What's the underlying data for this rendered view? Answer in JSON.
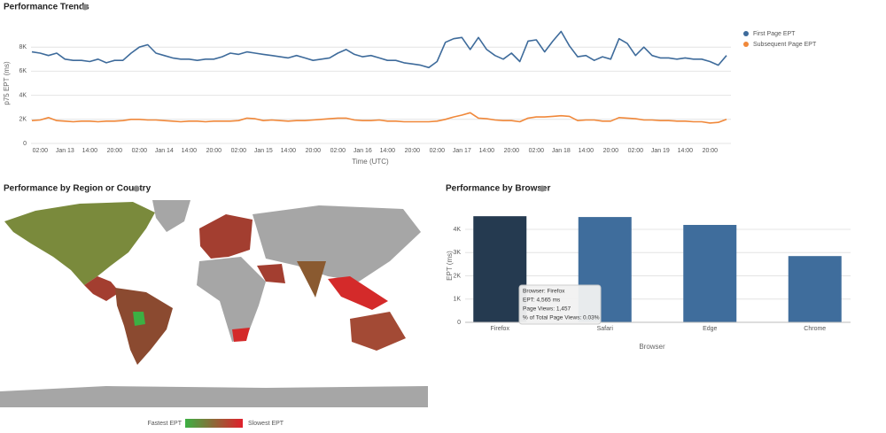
{
  "chart_data": [
    {
      "type": "line",
      "title": "Performance Trends",
      "ylabel": "p75 EPT (ms)",
      "xlabel": "Time (UTC)",
      "categories": [
        null,
        "02:00",
        null,
        null,
        "Jan 13",
        null,
        null,
        "14:00",
        null,
        null,
        "20:00",
        null,
        null,
        "02:00",
        null,
        null,
        "Jan 14",
        null,
        null,
        "14:00",
        null,
        null,
        "20:00",
        null,
        null,
        "02:00",
        null,
        null,
        "Jan 15",
        null,
        null,
        "14:00",
        null,
        null,
        "20:00",
        null,
        null,
        "02:00",
        null,
        null,
        "Jan 16",
        null,
        null,
        "14:00",
        null,
        null,
        "20:00",
        null,
        null,
        "02:00",
        null,
        null,
        "Jan 17",
        null,
        null,
        "14:00",
        null,
        null,
        "20:00",
        null,
        null,
        "02:00",
        null,
        null,
        "Jan 18",
        null,
        null,
        "14:00",
        null,
        null,
        "20:00",
        null,
        null,
        "02:00",
        null,
        null,
        "Jan 19",
        null,
        null,
        "14:00",
        null,
        null,
        "20:00",
        null,
        null
      ],
      "series": [
        {
          "name": "First Page EPT",
          "color": "#3e6b9b",
          "values": [
            7600,
            7500,
            7300,
            7500,
            7000,
            6900,
            6900,
            6800,
            7000,
            6700,
            6900,
            6900,
            7500,
            8000,
            8200,
            7500,
            7300,
            7100,
            7000,
            7000,
            6900,
            7000,
            7000,
            7200,
            7500,
            7400,
            7600,
            7500,
            7400,
            7300,
            7200,
            7100,
            7300,
            7100,
            6900,
            7000,
            7100,
            7500,
            7800,
            7400,
            7200,
            7300,
            7100,
            6900,
            6900,
            6700,
            6600,
            6500,
            6300,
            6800,
            8400,
            8700,
            8800,
            7800,
            8800,
            7800,
            7300,
            7000,
            7500,
            6800,
            8500,
            8600,
            7600,
            8500,
            9300,
            8100,
            7200,
            7300,
            6900,
            7200,
            7000,
            8700,
            8300,
            7300,
            8000,
            7300,
            7100,
            7100,
            7000,
            7100,
            7000,
            7000,
            6800,
            6500,
            7300
          ]
        },
        {
          "name": "Subsequent Page EPT",
          "color": "#f0883a",
          "values": [
            1900,
            1950,
            2150,
            1900,
            1850,
            1800,
            1850,
            1850,
            1800,
            1850,
            1850,
            1900,
            2000,
            2000,
            1950,
            1950,
            1900,
            1850,
            1800,
            1850,
            1850,
            1800,
            1850,
            1850,
            1850,
            1900,
            2100,
            2050,
            1900,
            1950,
            1900,
            1850,
            1900,
            1900,
            1950,
            2000,
            2050,
            2100,
            2100,
            1950,
            1900,
            1900,
            1950,
            1850,
            1850,
            1800,
            1800,
            1800,
            1800,
            1850,
            2000,
            2200,
            2350,
            2550,
            2100,
            2050,
            1950,
            1900,
            1900,
            1800,
            2100,
            2200,
            2200,
            2250,
            2300,
            2250,
            1900,
            1950,
            1950,
            1850,
            1850,
            2150,
            2100,
            2050,
            1950,
            1950,
            1900,
            1900,
            1850,
            1850,
            1800,
            1800,
            1700,
            1750,
            2000
          ]
        }
      ],
      "ylim": [
        0,
        10000
      ],
      "yticks": [
        0,
        {
          "value": 2000,
          "label": "2K"
        },
        {
          "value": 4000,
          "label": "4K"
        },
        {
          "value": 6000,
          "label": "6K"
        },
        {
          "value": 8000,
          "label": "8K"
        }
      ],
      "grid": true,
      "legend": "right"
    },
    {
      "type": "bar",
      "title": "Performance by Browser",
      "ylabel": "EPT (ms)",
      "xlabel": "Browser",
      "categories": [
        "Firefox",
        "Safari",
        "Edge",
        "Chrome"
      ],
      "values": [
        4565,
        4530,
        4190,
        2850
      ],
      "colors": [
        "#253a50",
        "#3f6d9c",
        "#3f6d9c",
        "#3f6d9c"
      ],
      "ylim": [
        0,
        4800
      ],
      "yticks": [
        0,
        {
          "value": 1000,
          "label": "1K"
        },
        {
          "value": 2000,
          "label": "2K"
        },
        {
          "value": 3000,
          "label": "3K"
        },
        {
          "value": 4000,
          "label": "4K"
        }
      ],
      "grid": true,
      "tooltip": [
        "Browser: Firefox",
        "EPT: 4,565 ms",
        "Page Views: 1,457",
        "% of Total Page Views: 0.03%"
      ]
    }
  ],
  "map_panel": {
    "title": "Performance by Region or Country",
    "legend_low": "Fastest EPT",
    "legend_high": "Slowest EPT",
    "legend_colors": [
      "#3cb043",
      "#e0202c"
    ]
  }
}
